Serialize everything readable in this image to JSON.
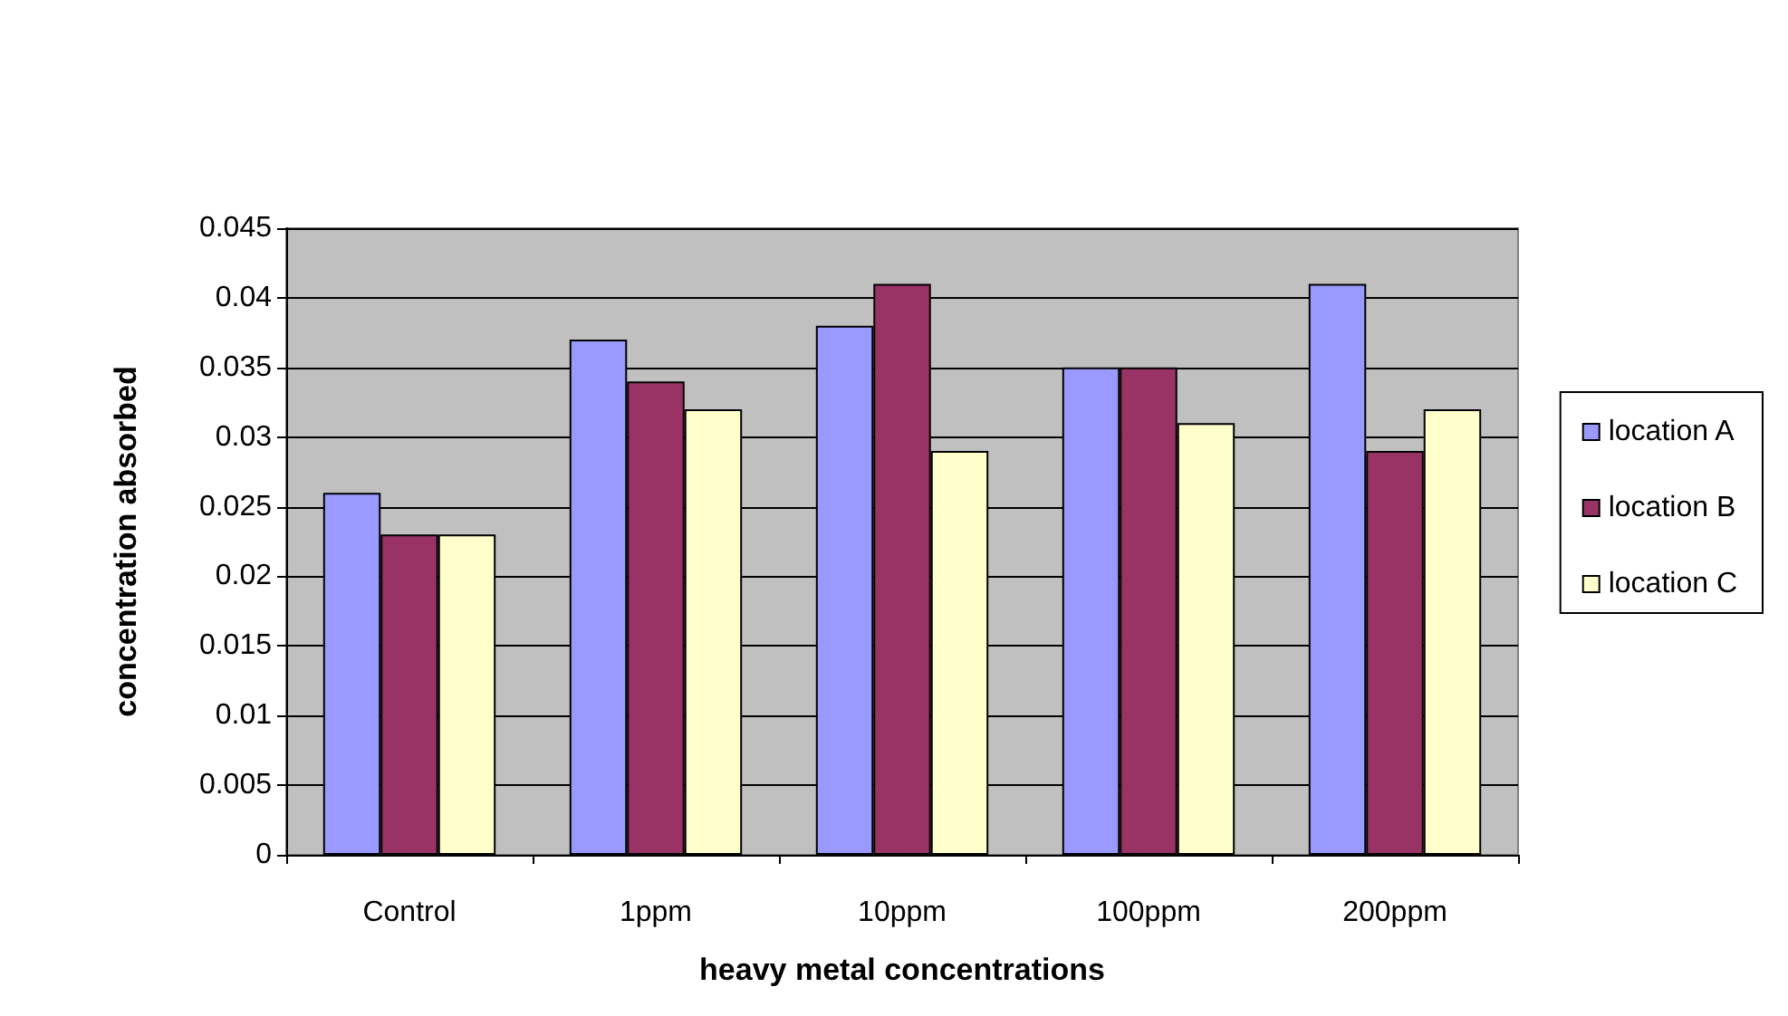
{
  "chart_data": {
    "type": "bar",
    "xlabel": "heavy metal concentrations",
    "ylabel": "concentration absorbed",
    "categories": [
      "Control",
      "1ppm",
      "10ppm",
      "100ppm",
      "200ppm"
    ],
    "series": [
      {
        "name": "location A",
        "color": "#9999ff",
        "values": [
          0.026,
          0.037,
          0.038,
          0.035,
          0.041
        ]
      },
      {
        "name": "location B",
        "color": "#993366",
        "values": [
          0.023,
          0.034,
          0.041,
          0.035,
          0.029
        ]
      },
      {
        "name": "location C",
        "color": "#ffffcc",
        "values": [
          0.023,
          0.032,
          0.029,
          0.031,
          0.032
        ]
      }
    ],
    "ylim": [
      0,
      0.045
    ],
    "yticks": [
      0,
      0.005,
      0.01,
      0.015,
      0.02,
      0.025,
      0.03,
      0.035,
      0.04,
      0.045
    ],
    "grid": "y",
    "legend": "right"
  }
}
